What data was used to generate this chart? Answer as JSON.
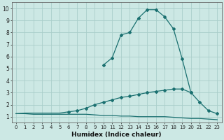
{
  "xlabel": "Humidex (Indice chaleur)",
  "bg_color": "#cce8e4",
  "grid_color": "#aaceca",
  "line_color": "#1a7070",
  "xlim": [
    -0.5,
    23.5
  ],
  "ylim": [
    0.5,
    10.5
  ],
  "xticks": [
    0,
    1,
    2,
    3,
    4,
    5,
    6,
    7,
    8,
    9,
    10,
    11,
    12,
    13,
    14,
    15,
    16,
    17,
    18,
    19,
    20,
    21,
    22,
    23
  ],
  "yticks": [
    1,
    2,
    3,
    4,
    5,
    6,
    7,
    8,
    9,
    10
  ],
  "series1_x": [
    0,
    1,
    2,
    3,
    4,
    5,
    6,
    7,
    8,
    9,
    10,
    11,
    12,
    13,
    14,
    15,
    16,
    17,
    18,
    19,
    20,
    21,
    22,
    23
  ],
  "series1_y": [
    1.25,
    1.25,
    1.2,
    1.2,
    1.2,
    1.2,
    1.2,
    1.2,
    1.2,
    1.15,
    1.1,
    1.1,
    1.05,
    1.05,
    1.0,
    1.0,
    1.0,
    1.0,
    0.95,
    0.9,
    0.85,
    0.85,
    0.8,
    0.75
  ],
  "series2_x": [
    0,
    1,
    2,
    3,
    4,
    5,
    6,
    7,
    8,
    9,
    10,
    11,
    12,
    13,
    14,
    15,
    16,
    17,
    18,
    19,
    20,
    21,
    22,
    23
  ],
  "series2_y": [
    1.25,
    1.3,
    1.3,
    1.3,
    1.3,
    1.3,
    1.4,
    1.5,
    1.7,
    2.0,
    2.2,
    2.4,
    2.6,
    2.7,
    2.85,
    3.0,
    3.1,
    3.2,
    3.3,
    3.3,
    3.0,
    2.2,
    1.5,
    1.25
  ],
  "series3_x": [
    10,
    11,
    12,
    13,
    14,
    15,
    16,
    17,
    18,
    19,
    20
  ],
  "series3_y": [
    5.3,
    5.9,
    7.8,
    8.0,
    9.2,
    9.9,
    9.9,
    9.3,
    8.3,
    5.8,
    3.0
  ],
  "s3_marker_x": [
    10,
    11,
    12,
    13,
    14,
    15,
    16,
    17,
    18,
    19,
    20
  ],
  "s3_marker_y": [
    5.3,
    5.9,
    7.8,
    8.0,
    9.2,
    9.9,
    9.9,
    9.3,
    8.3,
    5.8,
    3.0
  ],
  "s2_marker_x": [
    6,
    7,
    8,
    9,
    10,
    11,
    12,
    13,
    14,
    15,
    16,
    17,
    18,
    19,
    20,
    21,
    22,
    23
  ],
  "s2_marker_y": [
    1.4,
    1.5,
    1.7,
    2.0,
    2.2,
    2.4,
    2.6,
    2.7,
    2.85,
    3.0,
    3.1,
    3.2,
    3.3,
    3.3,
    3.0,
    2.2,
    1.5,
    1.25
  ]
}
